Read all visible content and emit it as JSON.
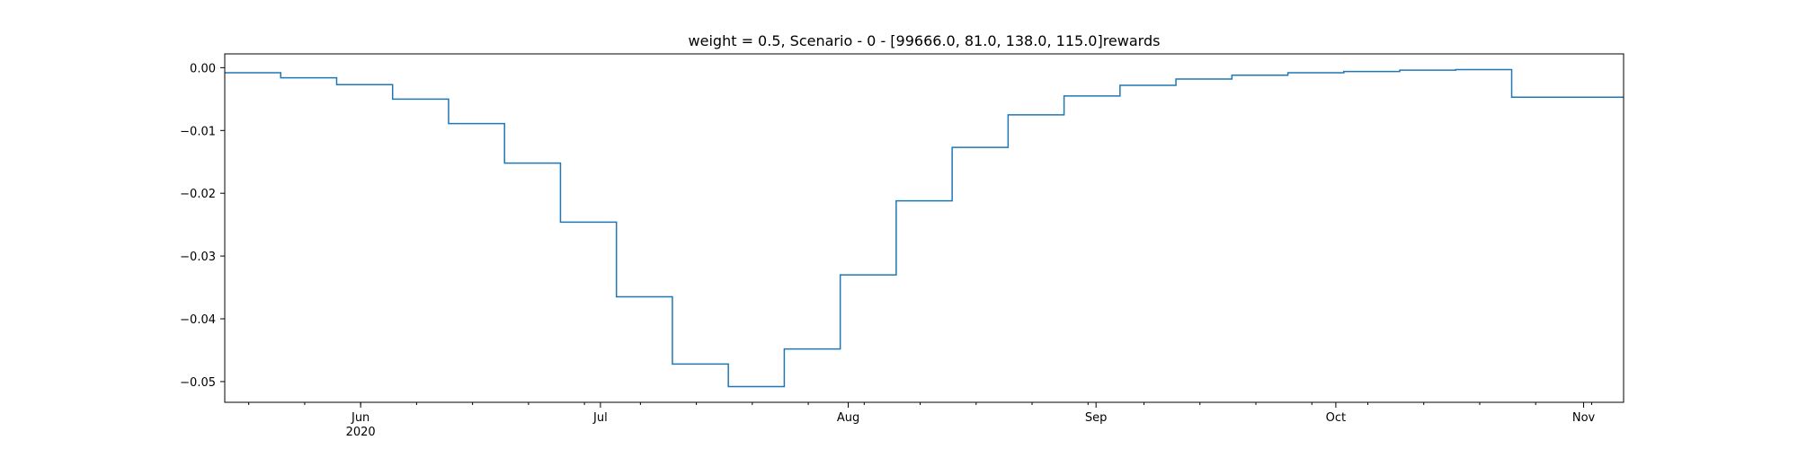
{
  "chart_data": {
    "type": "line",
    "step": "post",
    "title": "weight = 0.5, Scenario - 0 - [99666.0, 81.0, 138.0, 115.0]rewards",
    "xlabel": "",
    "ylabel": "",
    "xlim": [
      "2020-05-15",
      "2020-11-06"
    ],
    "ylim": [
      -0.0533,
      0.0022
    ],
    "grid": false,
    "line_color": "#1f77b4",
    "x_ticks": [
      {
        "date": "2020-06-01",
        "label": "Jun",
        "sublabel": "2020"
      },
      {
        "date": "2020-07-01",
        "label": "Jul",
        "sublabel": ""
      },
      {
        "date": "2020-08-01",
        "label": "Aug",
        "sublabel": ""
      },
      {
        "date": "2020-09-01",
        "label": "Sep",
        "sublabel": ""
      },
      {
        "date": "2020-10-01",
        "label": "Oct",
        "sublabel": ""
      },
      {
        "date": "2020-11-01",
        "label": "Nov",
        "sublabel": ""
      }
    ],
    "y_ticks": [
      {
        "value": 0.0,
        "label": "0.00"
      },
      {
        "value": -0.01,
        "label": "−0.01"
      },
      {
        "value": -0.02,
        "label": "−0.02"
      },
      {
        "value": -0.03,
        "label": "−0.03"
      },
      {
        "value": -0.04,
        "label": "−0.04"
      },
      {
        "value": -0.05,
        "label": "−0.05"
      }
    ],
    "series": [
      {
        "x": [
          "2020-05-15",
          "2020-05-22",
          "2020-05-29",
          "2020-06-05",
          "2020-06-12",
          "2020-06-19",
          "2020-06-26",
          "2020-07-03",
          "2020-07-10",
          "2020-07-17",
          "2020-07-24",
          "2020-07-31",
          "2020-08-07",
          "2020-08-14",
          "2020-08-21",
          "2020-08-28",
          "2020-09-04",
          "2020-09-11",
          "2020-09-18",
          "2020-09-25",
          "2020-10-02",
          "2020-10-09",
          "2020-10-16",
          "2020-10-23",
          "2020-10-30",
          "2020-11-06"
        ],
        "values": [
          -0.0008,
          -0.0016,
          -0.0027,
          -0.005,
          -0.0089,
          -0.0152,
          -0.0246,
          -0.0365,
          -0.0472,
          -0.0508,
          -0.0448,
          -0.033,
          -0.0212,
          -0.0127,
          -0.0075,
          -0.0045,
          -0.0028,
          -0.0018,
          -0.0012,
          -0.0008,
          -0.0006,
          -0.0004,
          -0.0003,
          -0.0047,
          -0.0047,
          -0.0047
        ]
      }
    ]
  }
}
